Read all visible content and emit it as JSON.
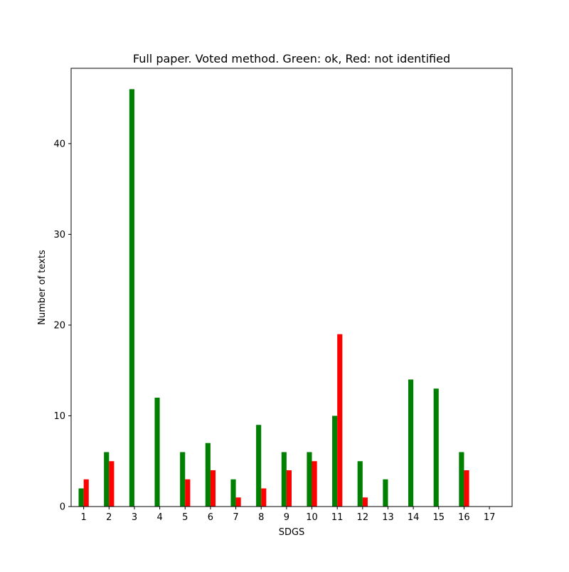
{
  "chart_data": {
    "type": "bar",
    "title": "Full paper. Voted method. Green: ok, Red: not identified",
    "xlabel": "SDGS",
    "ylabel": "Number of texts",
    "categories": [
      "1",
      "2",
      "3",
      "4",
      "5",
      "6",
      "7",
      "8",
      "9",
      "10",
      "11",
      "12",
      "13",
      "14",
      "15",
      "16",
      "17"
    ],
    "series": [
      {
        "values": [
          2,
          6,
          46,
          12,
          6,
          7,
          3,
          9,
          6,
          6,
          10,
          5,
          3,
          14,
          13,
          6,
          0
        ],
        "color": "#008000"
      },
      {
        "values": [
          3,
          5,
          0,
          0,
          3,
          4,
          1,
          2,
          4,
          5,
          19,
          1,
          0,
          0,
          0,
          4,
          0
        ],
        "color": "#ff0000"
      }
    ],
    "ylim": [
      0,
      48.3
    ],
    "yticks": [
      0,
      10,
      20,
      30,
      40
    ],
    "grid": false,
    "legend": "none"
  }
}
